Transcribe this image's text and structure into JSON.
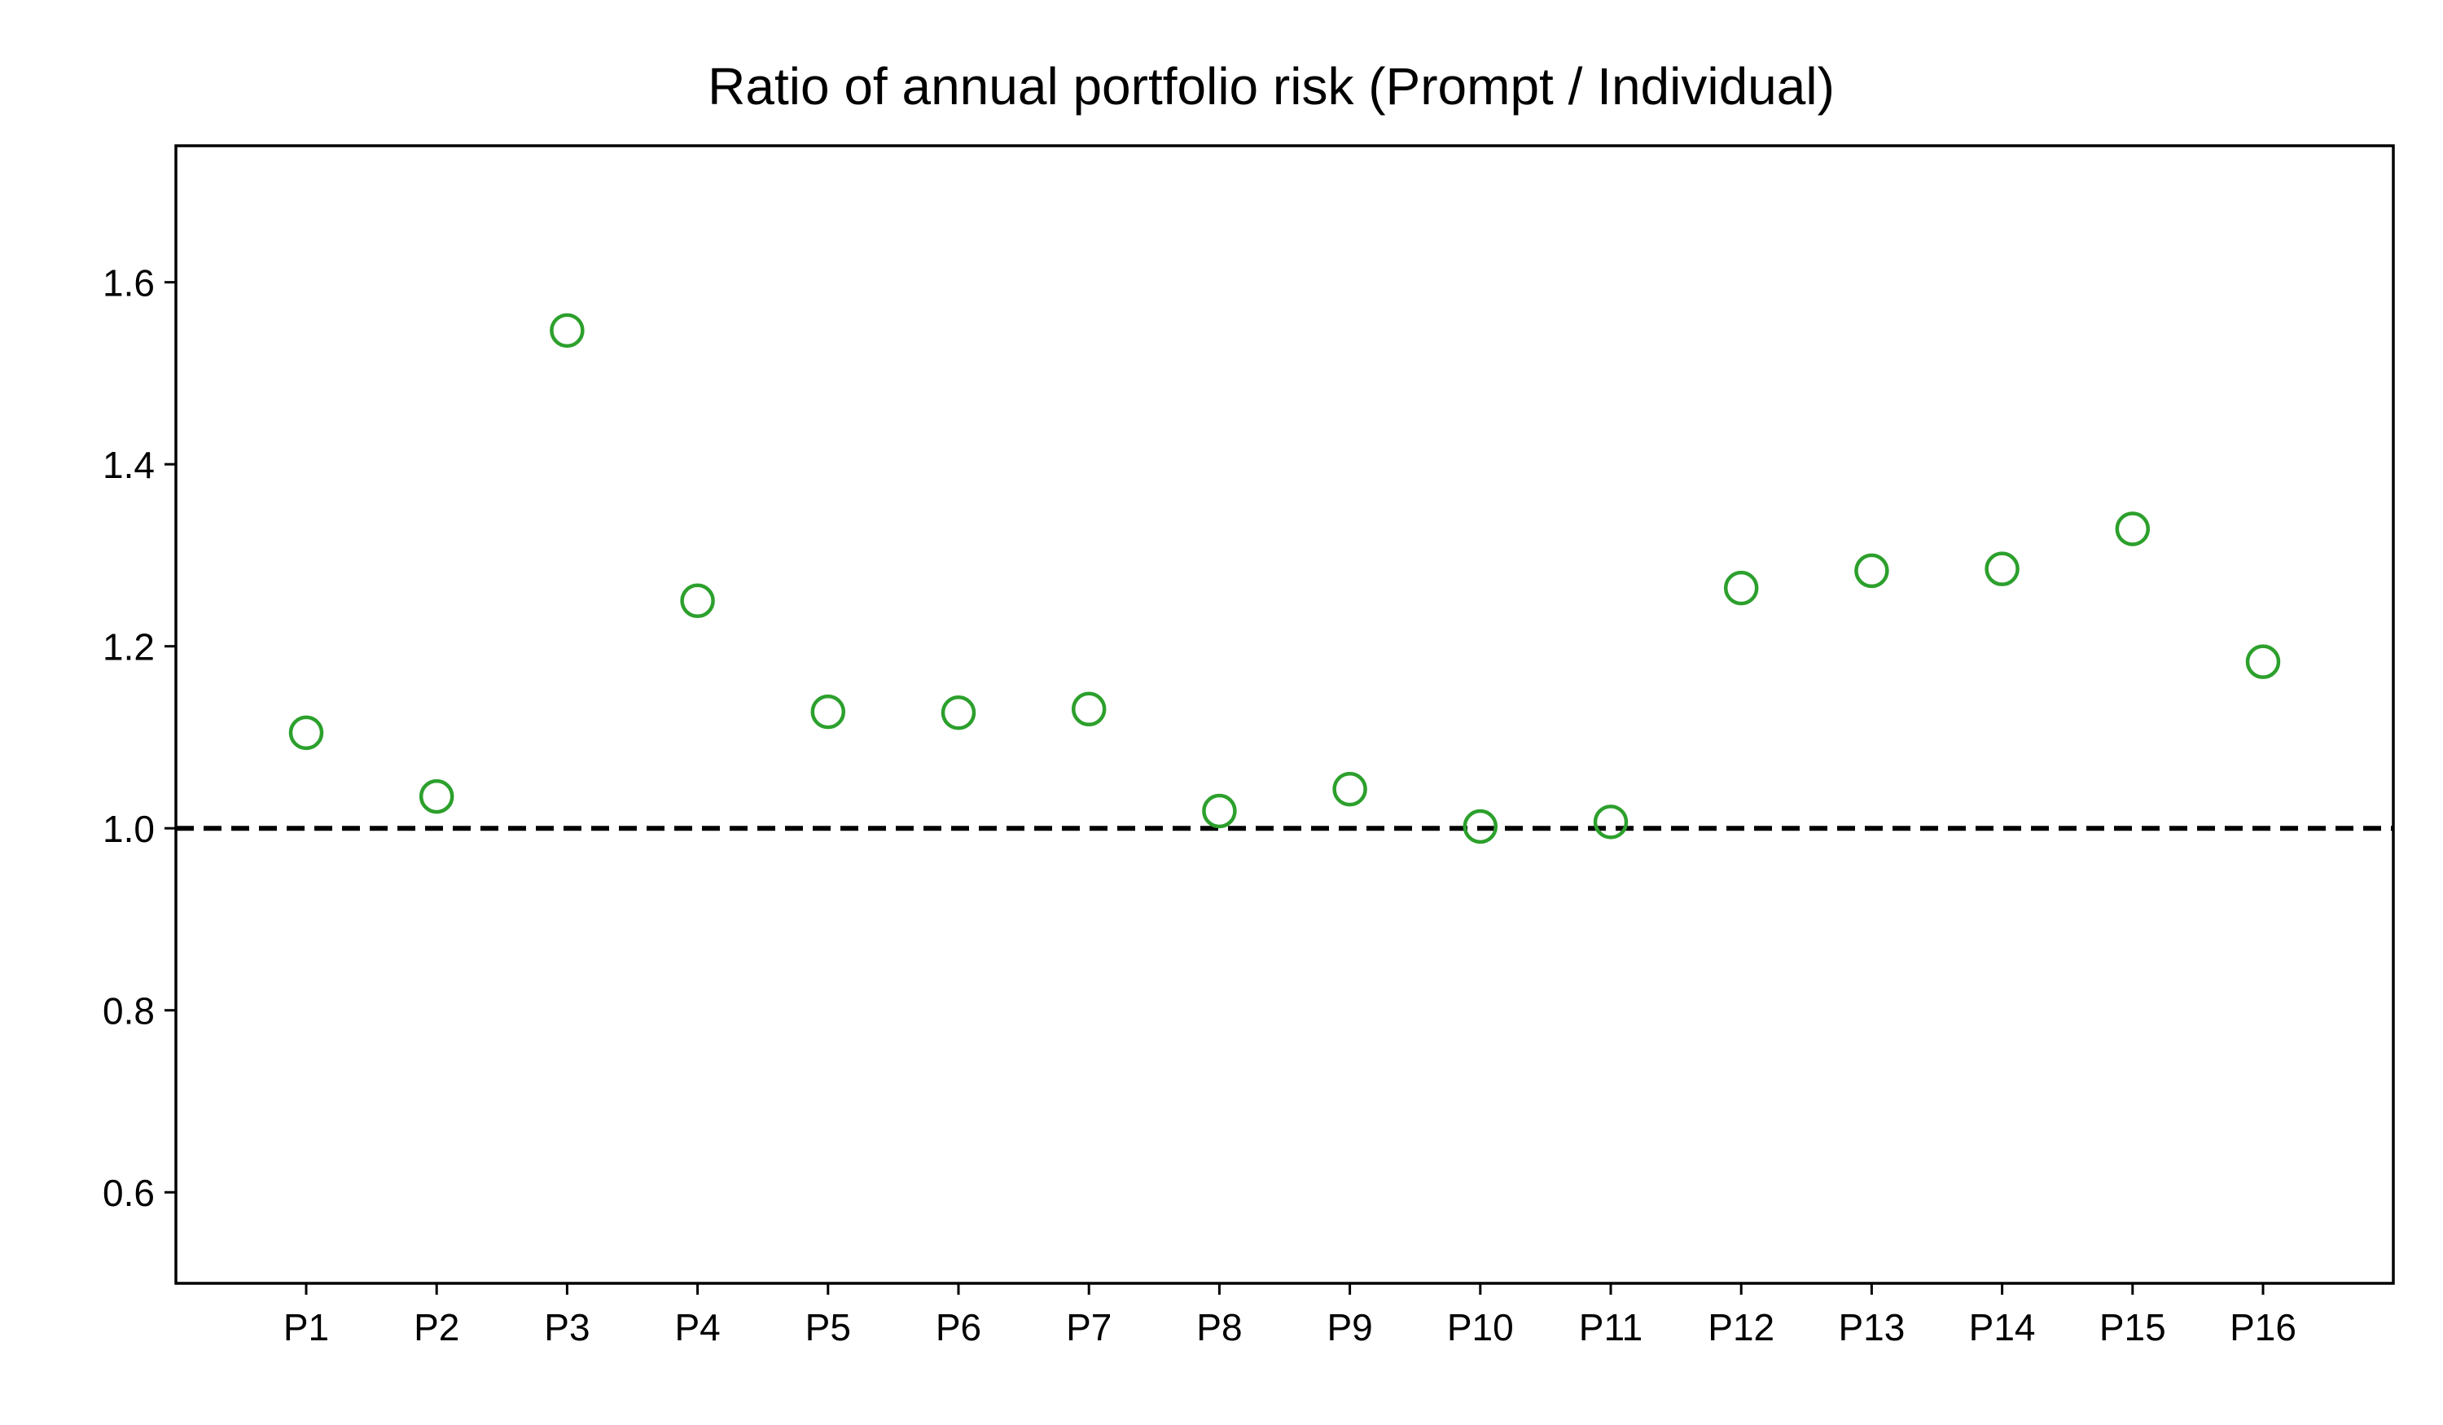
{
  "chart_data": {
    "type": "scatter",
    "title": "Ratio of annual portfolio risk (Prompt / Individual)",
    "xlabel": "",
    "ylabel": "",
    "categories": [
      "P1",
      "P2",
      "P3",
      "P4",
      "P5",
      "P6",
      "P7",
      "P8",
      "P9",
      "P10",
      "P11",
      "P12",
      "P13",
      "P14",
      "P15",
      "P16"
    ],
    "series": [
      {
        "values": [
          1.105,
          1.035,
          1.547,
          1.25,
          1.128,
          1.127,
          1.131,
          1.019,
          1.043,
          1.002,
          1.007,
          1.264,
          1.283,
          1.285,
          1.329,
          1.183
        ]
      }
    ],
    "ylim": [
      0.5,
      1.75
    ],
    "yticks": [
      0.6,
      0.8,
      1.0,
      1.2,
      1.4,
      1.6
    ],
    "ytick_labels": [
      "0.6",
      "0.8",
      "1.0",
      "1.2",
      "1.4",
      "1.6"
    ],
    "marker": "hollow-circle",
    "marker_color": "#2ca02c",
    "reference_line": {
      "y": 1.0,
      "style": "dashed",
      "color": "#000000"
    },
    "grid": false,
    "legend": "none"
  }
}
